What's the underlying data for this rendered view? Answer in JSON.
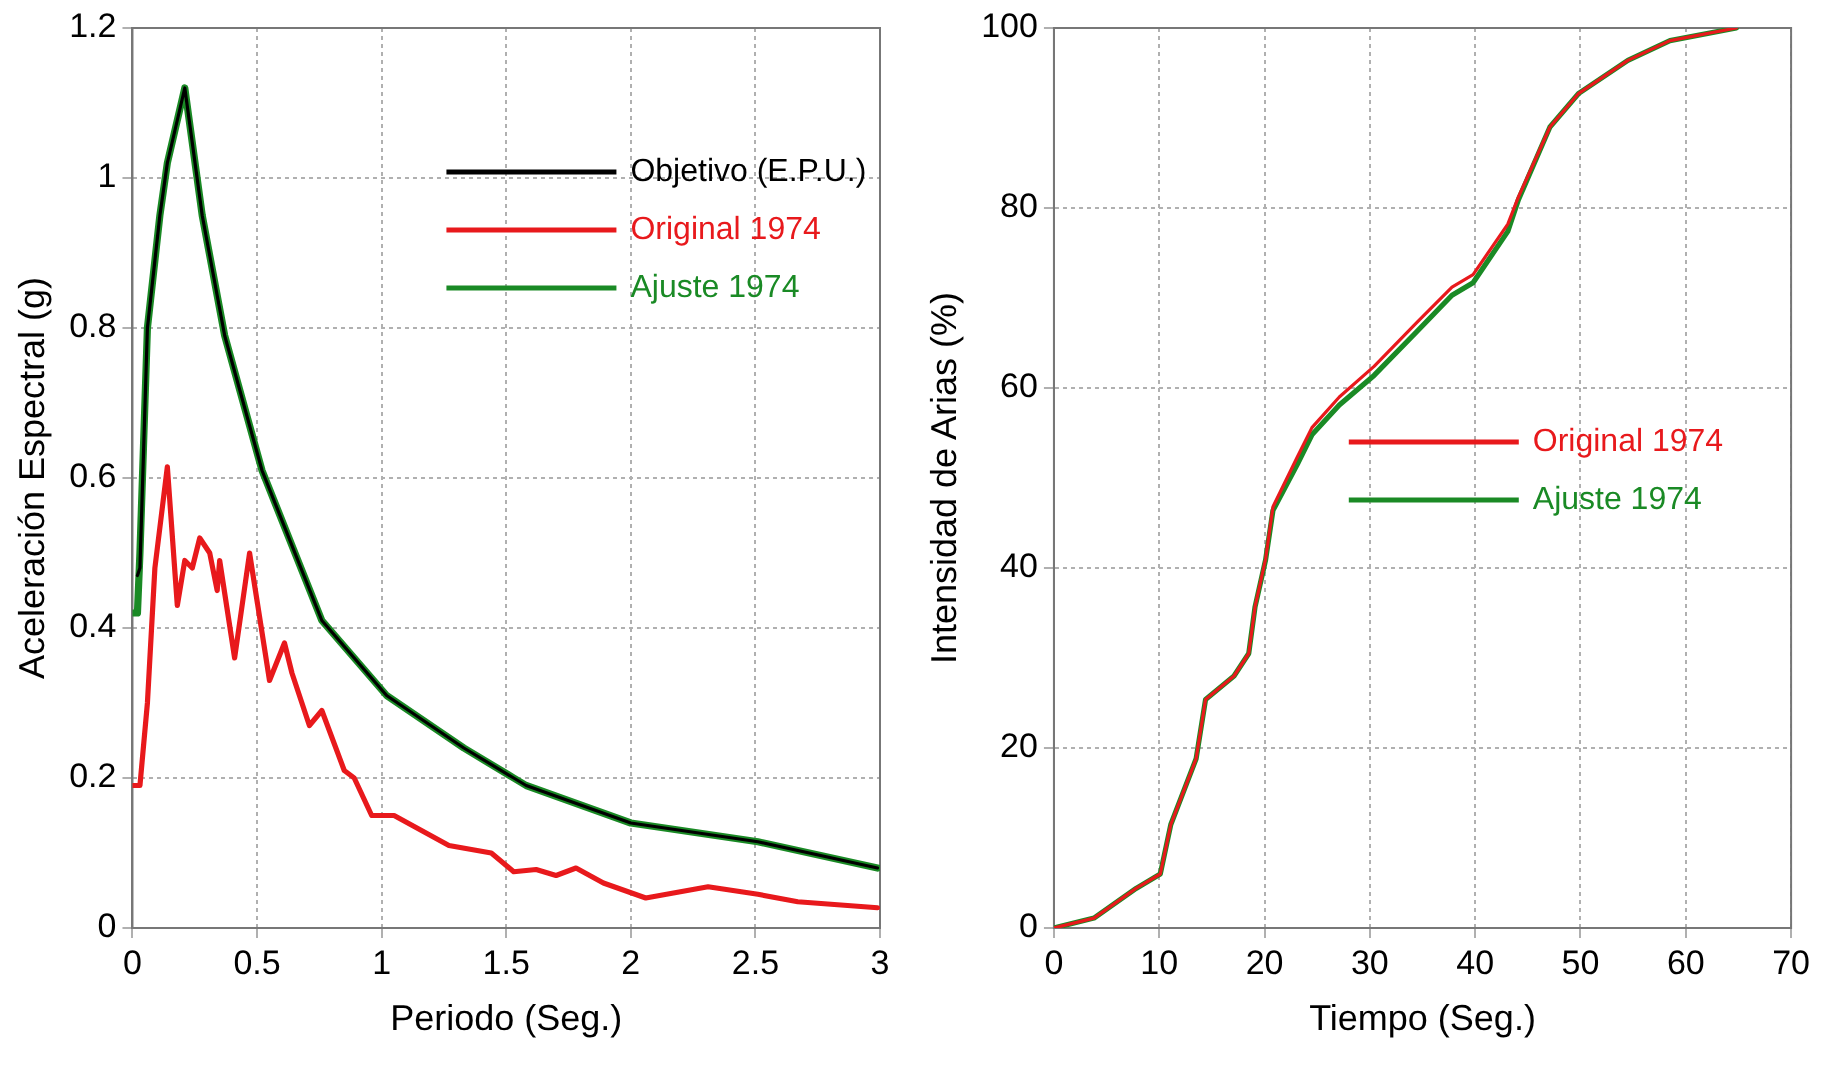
{
  "chart_data": [
    {
      "type": "line",
      "xlabel": "Periodo (Seg.)",
      "ylabel": "Aceleración Espectral (g)",
      "xlim": [
        0,
        3
      ],
      "xticks": [
        0,
        0.5,
        1,
        1.5,
        2,
        2.5,
        3
      ],
      "ylim": [
        0,
        1.2
      ],
      "yticks": [
        0,
        0.2,
        0.4,
        0.6,
        0.8,
        1,
        1.2
      ],
      "grid": true,
      "legend": "top right",
      "line_style": "solid",
      "marker": "none",
      "series": [
        {
          "name": "Objetivo (E.P.U.)",
          "color": "#000000",
          "x": [
            0.02,
            0.03,
            0.06,
            0.11,
            0.14,
            0.21,
            0.28,
            0.37,
            0.52,
            0.76,
            1.02,
            1.33,
            1.53,
            1.58,
            2.0,
            2.51,
            2.99
          ],
          "values": [
            0.47,
            0.48,
            0.8,
            0.95,
            1.02,
            1.12,
            0.95,
            0.79,
            0.61,
            0.41,
            0.31,
            0.24,
            0.2,
            0.19,
            0.14,
            0.115,
            0.08
          ]
        },
        {
          "name": "Original 1974",
          "color": "#e8191c",
          "x": [
            0,
            0.03,
            0.06,
            0.09,
            0.14,
            0.18,
            0.21,
            0.24,
            0.27,
            0.31,
            0.34,
            0.35,
            0.41,
            0.47,
            0.55,
            0.61,
            0.64,
            0.71,
            0.76,
            0.85,
            0.89,
            0.96,
            1.05,
            1.16,
            1.27,
            1.44,
            1.53,
            1.62,
            1.7,
            1.78,
            1.89,
            2.06,
            2.31,
            2.51,
            2.67,
            2.99
          ],
          "values": [
            0.19,
            0.19,
            0.3,
            0.48,
            0.615,
            0.43,
            0.49,
            0.48,
            0.52,
            0.5,
            0.45,
            0.49,
            0.36,
            0.5,
            0.33,
            0.38,
            0.34,
            0.27,
            0.29,
            0.21,
            0.2,
            0.15,
            0.15,
            0.13,
            0.11,
            0.1,
            0.075,
            0.078,
            0.07,
            0.08,
            0.06,
            0.04,
            0.055,
            0.045,
            0.035,
            0.027
          ]
        },
        {
          "name": "Ajuste 1974",
          "color": "#1a8a25",
          "x": [
            0,
            0.02,
            0.03,
            0.06,
            0.11,
            0.14,
            0.21,
            0.28,
            0.37,
            0.52,
            0.76,
            1.02,
            1.33,
            1.53,
            1.58,
            2.0,
            2.51,
            2.99
          ],
          "values": [
            0.42,
            0.42,
            0.5,
            0.8,
            0.95,
            1.02,
            1.12,
            0.95,
            0.79,
            0.61,
            0.41,
            0.31,
            0.24,
            0.2,
            0.19,
            0.14,
            0.115,
            0.08
          ]
        }
      ]
    },
    {
      "type": "line",
      "xlabel": "Tiempo (Seg.)",
      "ylabel": "Intensidad de Arias (%)",
      "xlim": [
        0,
        70
      ],
      "xticks": [
        0,
        10,
        20,
        30,
        40,
        50,
        60,
        70
      ],
      "ylim": [
        0,
        100
      ],
      "yticks": [
        0,
        20,
        40,
        60,
        80,
        100
      ],
      "grid": true,
      "legend": "right",
      "line_style": "solid",
      "marker": "none",
      "series": [
        {
          "name": "Original 1974",
          "color": "#e8191c",
          "x": [
            0,
            3.8,
            7.8,
            10.1,
            11.1,
            13.5,
            14.4,
            17.1,
            18.5,
            19.1,
            20.1,
            20.8,
            23.1,
            24.5,
            27.1,
            30.4,
            34.4,
            37.8,
            39.8,
            43.1,
            44.1,
            47.1,
            49.8,
            54.5,
            58.5,
            64.8
          ],
          "values": [
            0,
            1.1,
            4.4,
            6,
            11.5,
            18.8,
            25.4,
            28,
            30.5,
            35.7,
            41,
            46.8,
            52.3,
            55.6,
            59,
            62.4,
            67.2,
            71.2,
            72.6,
            78.2,
            81.2,
            89,
            92.7,
            96.4,
            98.6,
            100
          ]
        },
        {
          "name": "Ajuste 1974",
          "color": "#1a8a25",
          "x": [
            0,
            3.8,
            7.8,
            10.1,
            11.1,
            13.5,
            14.4,
            17.1,
            18.5,
            19.1,
            20.1,
            20.8,
            23.1,
            24.5,
            27.1,
            30.4,
            34.4,
            37.8,
            39.8,
            43.1,
            44.1,
            47.1,
            49.8,
            54.5,
            58.5,
            64.8
          ],
          "values": [
            0,
            1.1,
            4.4,
            6,
            11.5,
            18.8,
            25.4,
            28,
            30.5,
            35.7,
            40.9,
            46.4,
            51.5,
            54.8,
            58.1,
            61.4,
            66.2,
            70.3,
            71.7,
            77.4,
            80.9,
            89,
            92.7,
            96.4,
            98.6,
            100
          ]
        }
      ]
    }
  ]
}
